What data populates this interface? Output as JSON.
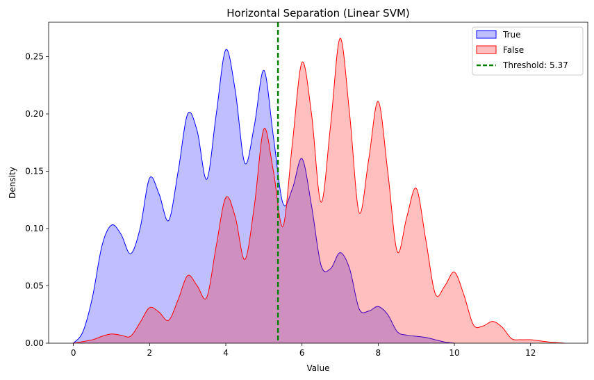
{
  "chart_data": {
    "type": "area",
    "title": "Horizontal Separation (Linear SVM)",
    "xlabel": "Value",
    "ylabel": "Density",
    "xlim": [
      -0.65,
      13.5
    ],
    "ylim": [
      0,
      0.28
    ],
    "xticks": [
      0,
      2,
      4,
      6,
      8,
      10,
      12
    ],
    "yticks": [
      0.0,
      0.05,
      0.1,
      0.15,
      0.2,
      0.25
    ],
    "ytick_labels": [
      "0.00",
      "0.05",
      "0.10",
      "0.15",
      "0.20",
      "0.25"
    ],
    "grid": false,
    "legend_position": "top-right",
    "series": [
      {
        "name": "True",
        "color": "#0000ff",
        "fill": "#0000ff",
        "fill_opacity": 0.25,
        "x": [
          0.0,
          0.25,
          0.5,
          0.75,
          1.0,
          1.25,
          1.5,
          1.75,
          2.0,
          2.25,
          2.5,
          2.75,
          3.0,
          3.25,
          3.5,
          3.75,
          4.0,
          4.25,
          4.5,
          4.75,
          5.0,
          5.25,
          5.5,
          5.75,
          6.0,
          6.25,
          6.5,
          6.75,
          7.0,
          7.25,
          7.5,
          7.75,
          8.0,
          8.25,
          8.5,
          8.75,
          9.0,
          9.25,
          9.5,
          9.75,
          10.0
        ],
        "y": [
          0.0,
          0.01,
          0.04,
          0.085,
          0.103,
          0.095,
          0.078,
          0.1,
          0.144,
          0.13,
          0.107,
          0.15,
          0.2,
          0.185,
          0.143,
          0.2,
          0.256,
          0.22,
          0.157,
          0.19,
          0.238,
          0.18,
          0.122,
          0.135,
          0.161,
          0.12,
          0.068,
          0.065,
          0.079,
          0.065,
          0.03,
          0.028,
          0.032,
          0.025,
          0.01,
          0.007,
          0.006,
          0.005,
          0.003,
          0.001,
          0.0
        ]
      },
      {
        "name": "False",
        "color": "#ff0000",
        "fill": "#ff0000",
        "fill_opacity": 0.25,
        "x": [
          0.0,
          0.5,
          0.75,
          1.0,
          1.25,
          1.5,
          1.75,
          2.0,
          2.25,
          2.5,
          2.75,
          3.0,
          3.25,
          3.5,
          3.75,
          4.0,
          4.25,
          4.5,
          4.75,
          5.0,
          5.25,
          5.5,
          5.75,
          6.0,
          6.25,
          6.5,
          6.75,
          7.0,
          7.25,
          7.5,
          7.75,
          8.0,
          8.25,
          8.5,
          8.75,
          9.0,
          9.25,
          9.5,
          9.75,
          10.0,
          10.25,
          10.5,
          10.75,
          11.0,
          11.25,
          11.5,
          11.75,
          12.0,
          12.25,
          12.5,
          12.9
        ],
        "y": [
          0.0,
          0.003,
          0.006,
          0.008,
          0.007,
          0.006,
          0.018,
          0.031,
          0.027,
          0.02,
          0.038,
          0.059,
          0.05,
          0.04,
          0.085,
          0.127,
          0.11,
          0.073,
          0.12,
          0.187,
          0.15,
          0.102,
          0.175,
          0.245,
          0.2,
          0.123,
          0.19,
          0.266,
          0.2,
          0.114,
          0.16,
          0.211,
          0.15,
          0.08,
          0.11,
          0.135,
          0.09,
          0.043,
          0.05,
          0.062,
          0.042,
          0.016,
          0.015,
          0.019,
          0.014,
          0.004,
          0.003,
          0.003,
          0.002,
          0.001,
          0.0
        ]
      }
    ],
    "threshold": {
      "value": 5.37,
      "label": "Threshold: 5.37",
      "color": "#008000",
      "style": "dashed"
    }
  }
}
